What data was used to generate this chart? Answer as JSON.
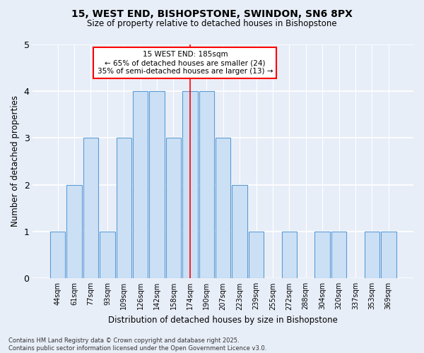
{
  "title1": "15, WEST END, BISHOPSTONE, SWINDON, SN6 8PX",
  "title2": "Size of property relative to detached houses in Bishopstone",
  "xlabel": "Distribution of detached houses by size in Bishopstone",
  "ylabel": "Number of detached properties",
  "categories": [
    "44sqm",
    "61sqm",
    "77sqm",
    "93sqm",
    "109sqm",
    "126sqm",
    "142sqm",
    "158sqm",
    "174sqm",
    "190sqm",
    "207sqm",
    "223sqm",
    "239sqm",
    "255sqm",
    "272sqm",
    "288sqm",
    "304sqm",
    "320sqm",
    "337sqm",
    "353sqm",
    "369sqm"
  ],
  "values": [
    1,
    2,
    3,
    1,
    3,
    4,
    4,
    3,
    4,
    4,
    3,
    2,
    1,
    0,
    1,
    0,
    1,
    1,
    0,
    1,
    1
  ],
  "bar_color": "#cce0f5",
  "bar_edge_color": "#5b9bd5",
  "highlight_index": 8,
  "annotation_title": "15 WEST END: 185sqm",
  "annotation_line1": "← 65% of detached houses are smaller (24)",
  "annotation_line2": "35% of semi-detached houses are larger (13) →",
  "annotation_box_color": "white",
  "annotation_box_edge_color": "red",
  "ylim": [
    0,
    5
  ],
  "yticks": [
    0,
    1,
    2,
    3,
    4,
    5
  ],
  "bg_color": "#e8eef8",
  "grid_color": "white",
  "footer": "Contains HM Land Registry data © Crown copyright and database right 2025.\nContains public sector information licensed under the Open Government Licence v3.0."
}
